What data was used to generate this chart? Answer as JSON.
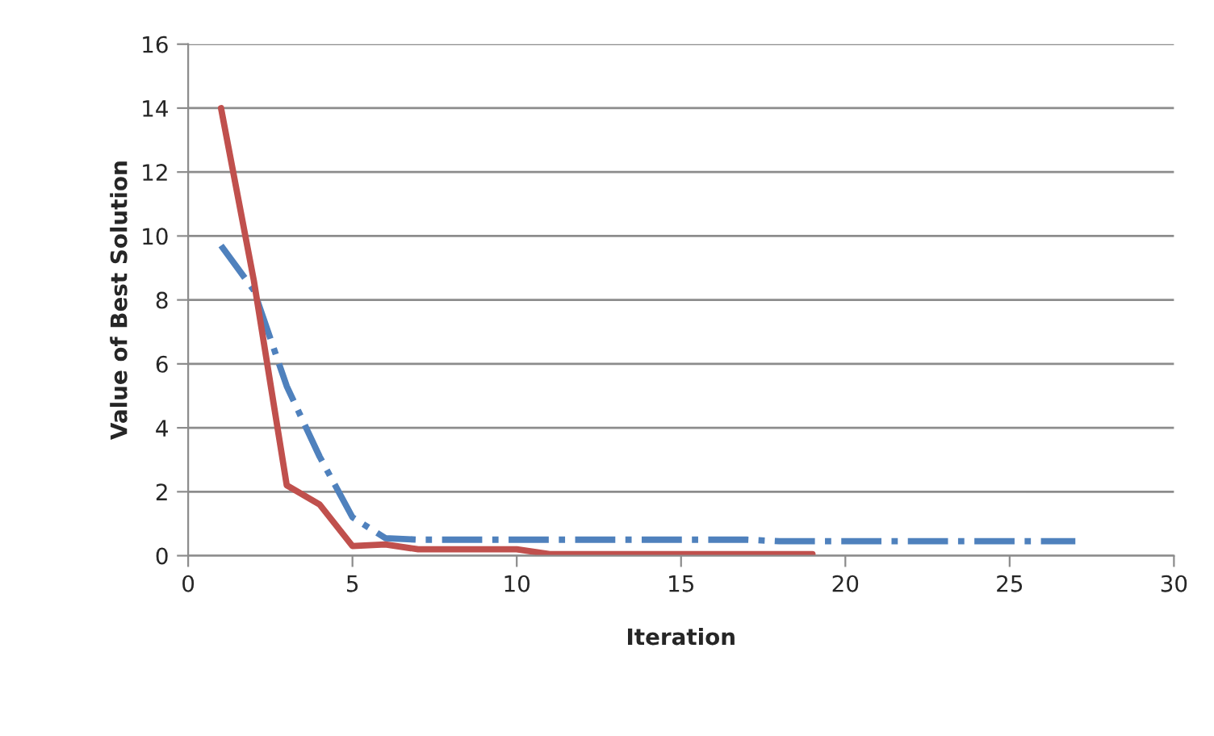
{
  "chart_data": {
    "type": "line",
    "xlabel": "Iteration",
    "ylabel": "Value of Best Solution",
    "xlim": [
      0,
      30
    ],
    "xticks": [
      0,
      5,
      10,
      15,
      20,
      25,
      30
    ],
    "ylim": [
      0,
      16
    ],
    "yticks": [
      0,
      2,
      4,
      6,
      8,
      10,
      12,
      14,
      16
    ],
    "grid": "y",
    "legend": false,
    "marker": "none",
    "series": [
      {
        "color": "#4f81bd",
        "line_style": "dashdot",
        "x": [
          1,
          2,
          3,
          4,
          5,
          6,
          7,
          8,
          9,
          10,
          11,
          12,
          13,
          14,
          15,
          16,
          17,
          18,
          19,
          20,
          21,
          22,
          23,
          24,
          25,
          26,
          27
        ],
        "values": [
          9.7,
          8.3,
          5.3,
          3.1,
          1.2,
          0.55,
          0.5,
          0.5,
          0.5,
          0.5,
          0.5,
          0.5,
          0.5,
          0.5,
          0.5,
          0.5,
          0.5,
          0.45,
          0.45,
          0.45,
          0.45,
          0.45,
          0.45,
          0.45,
          0.45,
          0.45,
          0.45
        ]
      },
      {
        "color": "#c0504d",
        "line_style": "solid",
        "x": [
          1,
          2,
          3,
          4,
          5,
          6,
          7,
          8,
          9,
          10,
          11,
          12,
          13,
          14,
          15,
          16,
          17,
          18,
          19
        ],
        "values": [
          14,
          8.6,
          2.2,
          1.6,
          0.3,
          0.35,
          0.2,
          0.2,
          0.2,
          0.2,
          0.05,
          0.05,
          0.05,
          0.05,
          0.05,
          0.05,
          0.05,
          0.05,
          0.05
        ]
      }
    ]
  }
}
